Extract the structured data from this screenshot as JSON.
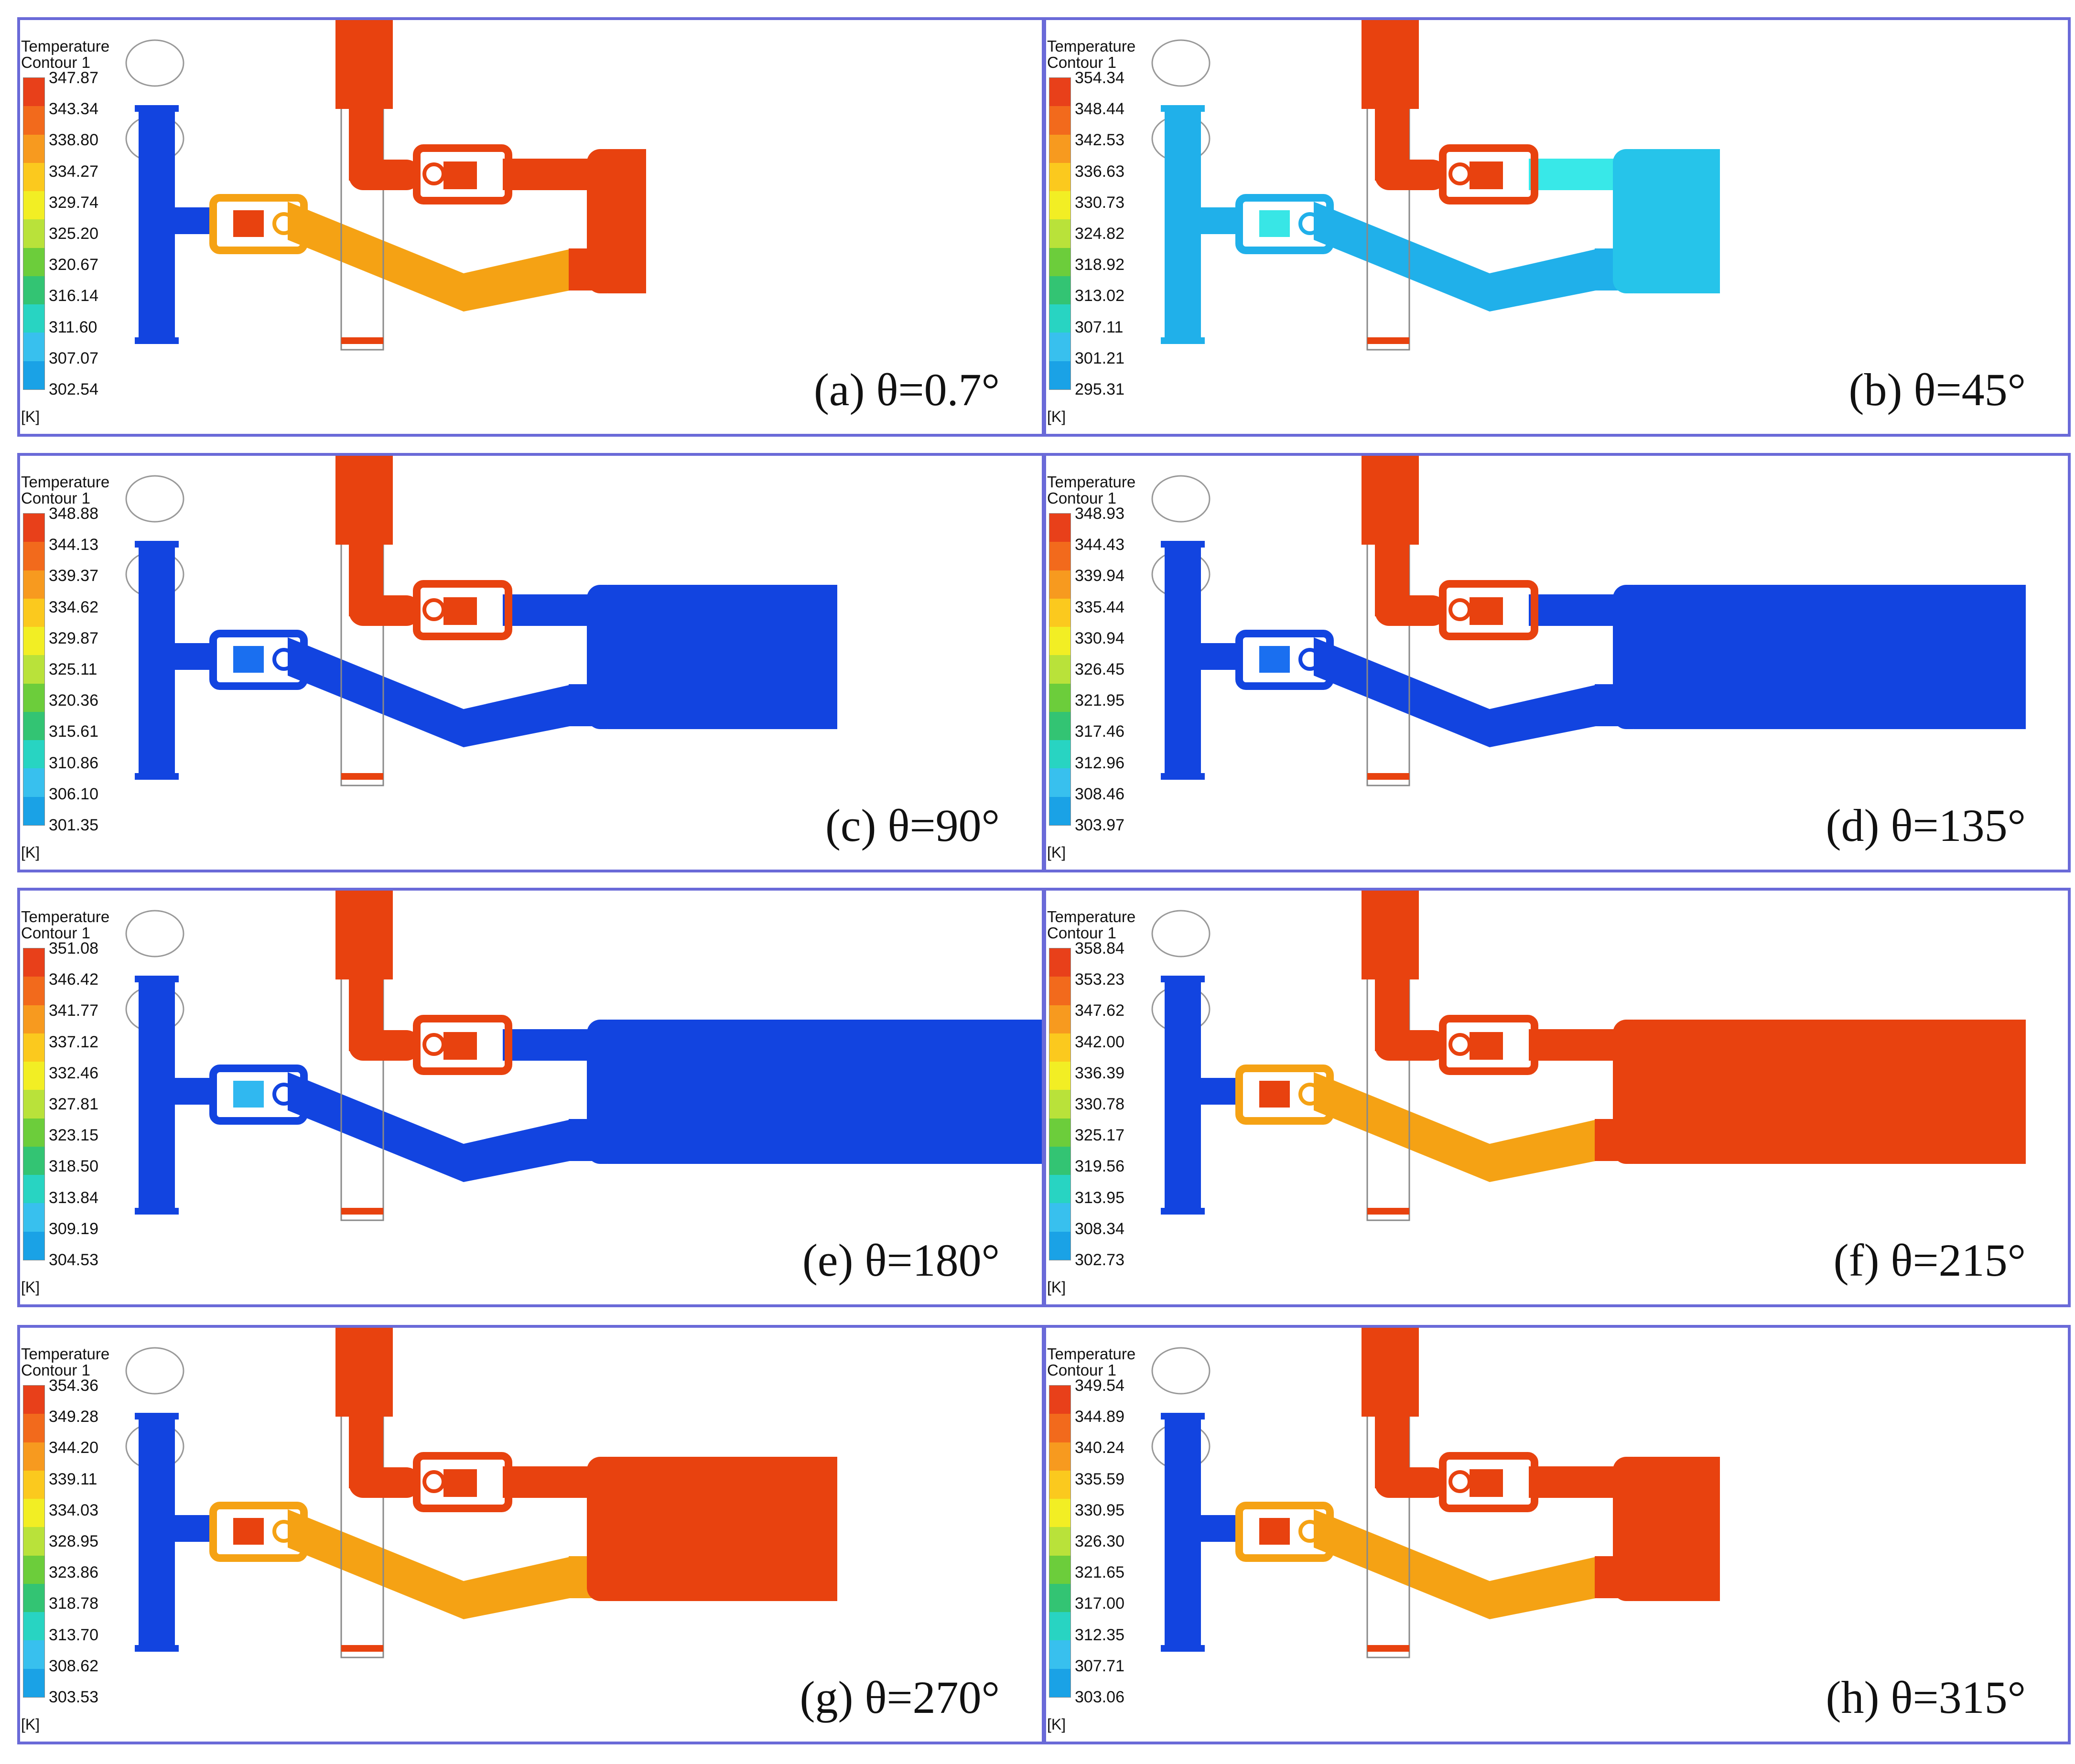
{
  "figure": {
    "legend_title_line1": "Temperature",
    "legend_title_line2": "Contour 1",
    "unit": "[K]",
    "colormap": [
      "#e8401a",
      "#f26a1c",
      "#f79a1f",
      "#fbc91e",
      "#f2ee24",
      "#b9e23a",
      "#6ccd3b",
      "#33c473",
      "#28d4c2",
      "#38c0ee",
      "#1aa2e6",
      "#1440d8"
    ],
    "panels": [
      {
        "caption": "(a) θ=0.7°",
        "legend_values": [
          "347.87",
          "343.34",
          "338.80",
          "334.27",
          "329.74",
          "325.20",
          "320.67",
          "316.14",
          "311.60",
          "307.07",
          "302.54"
        ],
        "colors": {
          "tee": "#1244e0",
          "valve_left": "#f5a214",
          "valve_left_core": "#e8420f",
          "pipe_lower": "#f5a214",
          "pipe_upper": "#e8420f",
          "chamber": "#e8420f",
          "chamber_inlet": "#e8420f",
          "valve_right": "#e8420f",
          "vertical_pipe": "#e8420f"
        },
        "chamber_length": "short"
      },
      {
        "caption": "(b) θ=45°",
        "legend_values": [
          "354.34",
          "348.44",
          "342.53",
          "336.63",
          "330.73",
          "324.82",
          "318.92",
          "313.02",
          "307.11",
          "301.21",
          "295.31"
        ],
        "colors": {
          "tee": "#20b0ea",
          "valve_left": "#20b0ea",
          "valve_left_core": "#38e6e6",
          "pipe_lower": "#20b0ea",
          "pipe_upper": "#38e8e8",
          "chamber": "#26c4ea",
          "chamber_inlet": "#20b0ea",
          "valve_right": "#e8420f",
          "vertical_pipe": "#e8420f"
        },
        "chamber_length": "medium"
      },
      {
        "caption": "(c) θ=90°",
        "legend_values": [
          "348.88",
          "344.13",
          "339.37",
          "334.62",
          "329.87",
          "325.11",
          "320.36",
          "315.61",
          "310.86",
          "306.10",
          "301.35"
        ],
        "colors": {
          "tee": "#1244e0",
          "valve_left": "#1244e0",
          "valve_left_core": "#1a6ff0",
          "pipe_lower": "#1244e0",
          "pipe_upper": "#1244e0",
          "chamber": "#1244e0",
          "chamber_inlet": "#1244e0",
          "valve_right": "#e8420f",
          "vertical_pipe": "#e8420f"
        },
        "chamber_length": "long"
      },
      {
        "caption": "(d) θ=135°",
        "legend_values": [
          "348.93",
          "344.43",
          "339.94",
          "335.44",
          "330.94",
          "326.45",
          "321.95",
          "317.46",
          "312.96",
          "308.46",
          "303.97"
        ],
        "colors": {
          "tee": "#1244e0",
          "valve_left": "#1244e0",
          "valve_left_core": "#1a6ff0",
          "pipe_lower": "#1244e0",
          "pipe_upper": "#1244e0",
          "chamber": "#1244e0",
          "chamber_inlet": "#1244e0",
          "valve_right": "#e8420f",
          "vertical_pipe": "#e8420f"
        },
        "chamber_length": "xlong"
      },
      {
        "caption": "(e) θ=180°",
        "legend_values": [
          "351.08",
          "346.42",
          "341.77",
          "337.12",
          "332.46",
          "327.81",
          "323.15",
          "318.50",
          "313.84",
          "309.19",
          "304.53"
        ],
        "colors": {
          "tee": "#1244e0",
          "valve_left": "#1244e0",
          "valve_left_core": "#30b8f0",
          "pipe_lower": "#1244e0",
          "pipe_upper": "#1244e0",
          "chamber": "#1244e0",
          "chamber_inlet": "#1244e0",
          "valve_right": "#e8420f",
          "vertical_pipe": "#e8420f"
        },
        "chamber_length": "full"
      },
      {
        "caption": "(f) θ=215°",
        "legend_values": [
          "358.84",
          "353.23",
          "347.62",
          "342.00",
          "336.39",
          "330.78",
          "325.17",
          "319.56",
          "313.95",
          "308.34",
          "302.73"
        ],
        "colors": {
          "tee": "#1244e0",
          "valve_left": "#f5a214",
          "valve_left_core": "#e8420f",
          "pipe_lower": "#f5a214",
          "pipe_upper": "#e8420f",
          "chamber": "#e8420f",
          "chamber_inlet": "#e8420f",
          "valve_right": "#e8420f",
          "vertical_pipe": "#e8420f"
        },
        "chamber_length": "xlong"
      },
      {
        "caption": "(g) θ=270°",
        "legend_values": [
          "354.36",
          "349.28",
          "344.20",
          "339.11",
          "334.03",
          "328.95",
          "323.86",
          "318.78",
          "313.70",
          "308.62",
          "303.53"
        ],
        "colors": {
          "tee": "#1244e0",
          "valve_left": "#f5a214",
          "valve_left_core": "#e8420f",
          "pipe_lower": "#f5a214",
          "pipe_upper": "#e8420f",
          "chamber": "#e8420f",
          "chamber_inlet": "#f5a214",
          "valve_right": "#e8420f",
          "vertical_pipe": "#e8420f"
        },
        "chamber_length": "long"
      },
      {
        "caption": "(h) θ=315°",
        "legend_values": [
          "349.54",
          "344.89",
          "340.24",
          "335.59",
          "330.95",
          "326.30",
          "321.65",
          "317.00",
          "312.35",
          "307.71",
          "303.06"
        ],
        "colors": {
          "tee": "#1244e0",
          "valve_left": "#f5a214",
          "valve_left_core": "#e8420f",
          "pipe_lower": "#f5a214",
          "pipe_upper": "#e8420f",
          "chamber": "#e8420f",
          "chamber_inlet": "#e8420f",
          "valve_right": "#e8420f",
          "vertical_pipe": "#e8420f"
        },
        "chamber_length": "medium"
      }
    ]
  }
}
